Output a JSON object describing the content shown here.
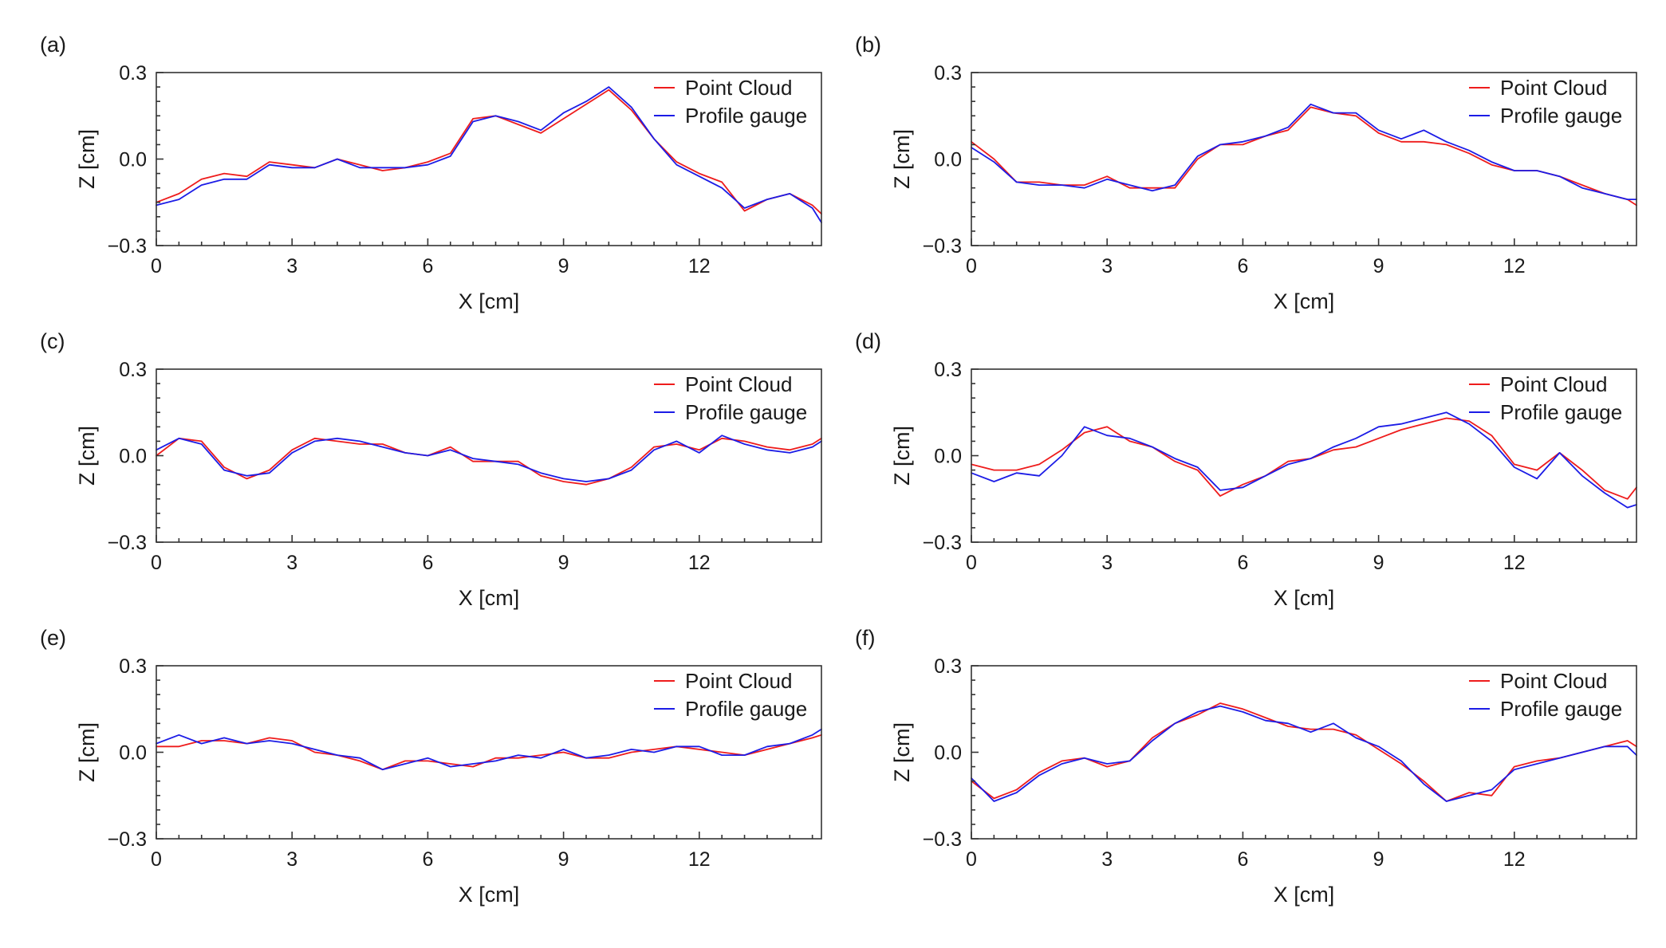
{
  "colors": {
    "point_cloud": "#ee1c1c",
    "profile_gauge": "#1c1ce6"
  },
  "chart_data": [
    {
      "type": "line",
      "panel": "(a)",
      "xlabel": "X [cm]",
      "ylabel": "Z [cm]",
      "xlim": [
        0,
        14.7
      ],
      "ylim": [
        -0.3,
        0.3
      ],
      "xticks": [
        0,
        3,
        6,
        9,
        12
      ],
      "yticks": [
        -0.3,
        0.0,
        0.3
      ],
      "xtick_labels": [
        "0",
        "3",
        "6",
        "9",
        "12"
      ],
      "ytick_labels": [
        "−0.3",
        "0.0",
        "0.3"
      ],
      "legend": [
        "Point Cloud",
        "Profile gauge"
      ],
      "series": [
        {
          "name": "Point Cloud",
          "x": [
            0,
            0.5,
            1,
            1.5,
            2,
            2.5,
            3,
            3.5,
            4,
            4.5,
            5,
            5.5,
            6,
            6.5,
            7,
            7.5,
            8,
            8.5,
            9,
            9.5,
            10,
            10.5,
            11,
            11.5,
            12,
            12.5,
            13,
            13.5,
            14,
            14.5,
            14.7
          ],
          "y": [
            -0.15,
            -0.12,
            -0.07,
            -0.05,
            -0.06,
            -0.01,
            -0.02,
            -0.03,
            0.0,
            -0.02,
            -0.04,
            -0.03,
            -0.01,
            0.02,
            0.14,
            0.15,
            0.12,
            0.09,
            0.14,
            0.19,
            0.24,
            0.17,
            0.07,
            -0.01,
            -0.05,
            -0.08,
            -0.18,
            -0.14,
            -0.12,
            -0.16,
            -0.19
          ]
        },
        {
          "name": "Profile gauge",
          "x": [
            0,
            0.5,
            1,
            1.5,
            2,
            2.5,
            3,
            3.5,
            4,
            4.5,
            5,
            5.5,
            6,
            6.5,
            7,
            7.5,
            8,
            8.5,
            9,
            9.5,
            10,
            10.5,
            11,
            11.5,
            12,
            12.5,
            13,
            13.5,
            14,
            14.5,
            14.7
          ],
          "y": [
            -0.16,
            -0.14,
            -0.09,
            -0.07,
            -0.07,
            -0.02,
            -0.03,
            -0.03,
            0.0,
            -0.03,
            -0.03,
            -0.03,
            -0.02,
            0.01,
            0.13,
            0.15,
            0.13,
            0.1,
            0.16,
            0.2,
            0.25,
            0.18,
            0.07,
            -0.02,
            -0.06,
            -0.1,
            -0.17,
            -0.14,
            -0.12,
            -0.17,
            -0.22
          ]
        }
      ]
    },
    {
      "type": "line",
      "panel": "(b)",
      "xlabel": "X [cm]",
      "ylabel": "Z [cm]",
      "xlim": [
        0,
        14.7
      ],
      "ylim": [
        -0.3,
        0.3
      ],
      "xticks": [
        0,
        3,
        6,
        9,
        12
      ],
      "yticks": [
        -0.3,
        0.0,
        0.3
      ],
      "xtick_labels": [
        "0",
        "3",
        "6",
        "9",
        "12"
      ],
      "ytick_labels": [
        "−0.3",
        "0.0",
        "0.3"
      ],
      "legend": [
        "Point Cloud",
        "Profile gauge"
      ],
      "series": [
        {
          "name": "Point Cloud",
          "x": [
            0,
            0.5,
            1,
            1.5,
            2,
            2.5,
            3,
            3.5,
            4,
            4.5,
            5,
            5.5,
            6,
            6.5,
            7,
            7.5,
            8,
            8.5,
            9,
            9.5,
            10,
            10.5,
            11,
            11.5,
            12,
            12.5,
            13,
            13.5,
            14,
            14.5,
            14.7
          ],
          "y": [
            0.06,
            0.0,
            -0.08,
            -0.08,
            -0.09,
            -0.09,
            -0.06,
            -0.1,
            -0.1,
            -0.1,
            0.0,
            0.05,
            0.05,
            0.08,
            0.1,
            0.18,
            0.16,
            0.15,
            0.09,
            0.06,
            0.06,
            0.05,
            0.02,
            -0.02,
            -0.04,
            -0.04,
            -0.06,
            -0.09,
            -0.12,
            -0.14,
            -0.16
          ]
        },
        {
          "name": "Profile gauge",
          "x": [
            0,
            0.5,
            1,
            1.5,
            2,
            2.5,
            3,
            3.5,
            4,
            4.5,
            5,
            5.5,
            6,
            6.5,
            7,
            7.5,
            8,
            8.5,
            9,
            9.5,
            10,
            10.5,
            11,
            11.5,
            12,
            12.5,
            13,
            13.5,
            14,
            14.5,
            14.7
          ],
          "y": [
            0.04,
            -0.01,
            -0.08,
            -0.09,
            -0.09,
            -0.1,
            -0.07,
            -0.09,
            -0.11,
            -0.09,
            0.01,
            0.05,
            0.06,
            0.08,
            0.11,
            0.19,
            0.16,
            0.16,
            0.1,
            0.07,
            0.1,
            0.06,
            0.03,
            -0.01,
            -0.04,
            -0.04,
            -0.06,
            -0.1,
            -0.12,
            -0.14,
            -0.14
          ]
        }
      ]
    },
    {
      "type": "line",
      "panel": "(c)",
      "xlabel": "X [cm]",
      "ylabel": "Z [cm]",
      "xlim": [
        0,
        14.7
      ],
      "ylim": [
        -0.3,
        0.3
      ],
      "xticks": [
        0,
        3,
        6,
        9,
        12
      ],
      "yticks": [
        -0.3,
        0.0,
        0.3
      ],
      "xtick_labels": [
        "0",
        "3",
        "6",
        "9",
        "12"
      ],
      "ytick_labels": [
        "−0.3",
        "0.0",
        "0.3"
      ],
      "legend": [
        "Point Cloud",
        "Profile gauge"
      ],
      "series": [
        {
          "name": "Point Cloud",
          "x": [
            0,
            0.5,
            1,
            1.5,
            2,
            2.5,
            3,
            3.5,
            4,
            4.5,
            5,
            5.5,
            6,
            6.5,
            7,
            7.5,
            8,
            8.5,
            9,
            9.5,
            10,
            10.5,
            11,
            11.5,
            12,
            12.5,
            13,
            13.5,
            14,
            14.5,
            14.7
          ],
          "y": [
            0.0,
            0.06,
            0.05,
            -0.04,
            -0.08,
            -0.05,
            0.02,
            0.06,
            0.05,
            0.04,
            0.04,
            0.01,
            0.0,
            0.03,
            -0.02,
            -0.02,
            -0.02,
            -0.07,
            -0.09,
            -0.1,
            -0.08,
            -0.04,
            0.03,
            0.04,
            0.02,
            0.06,
            0.05,
            0.03,
            0.02,
            0.04,
            0.06
          ]
        },
        {
          "name": "Profile gauge",
          "x": [
            0,
            0.5,
            1,
            1.5,
            2,
            2.5,
            3,
            3.5,
            4,
            4.5,
            5,
            5.5,
            6,
            6.5,
            7,
            7.5,
            8,
            8.5,
            9,
            9.5,
            10,
            10.5,
            11,
            11.5,
            12,
            12.5,
            13,
            13.5,
            14,
            14.5,
            14.7
          ],
          "y": [
            0.02,
            0.06,
            0.04,
            -0.05,
            -0.07,
            -0.06,
            0.01,
            0.05,
            0.06,
            0.05,
            0.03,
            0.01,
            0.0,
            0.02,
            -0.01,
            -0.02,
            -0.03,
            -0.06,
            -0.08,
            -0.09,
            -0.08,
            -0.05,
            0.02,
            0.05,
            0.01,
            0.07,
            0.04,
            0.02,
            0.01,
            0.03,
            0.05
          ]
        }
      ]
    },
    {
      "type": "line",
      "panel": "(d)",
      "xlabel": "X [cm]",
      "ylabel": "Z [cm]",
      "xlim": [
        0,
        14.7
      ],
      "ylim": [
        -0.3,
        0.3
      ],
      "xticks": [
        0,
        3,
        6,
        9,
        12
      ],
      "yticks": [
        -0.3,
        0.0,
        0.3
      ],
      "xtick_labels": [
        "0",
        "3",
        "6",
        "9",
        "12"
      ],
      "ytick_labels": [
        "−0.3",
        "0.0",
        "0.3"
      ],
      "legend": [
        "Point Cloud",
        "Profile gauge"
      ],
      "series": [
        {
          "name": "Point Cloud",
          "x": [
            0,
            0.5,
            1,
            1.5,
            2,
            2.5,
            3,
            3.5,
            4,
            4.5,
            5,
            5.5,
            6,
            6.5,
            7,
            7.5,
            8,
            8.5,
            9,
            9.5,
            10,
            10.5,
            11,
            11.5,
            12,
            12.5,
            13,
            13.5,
            14,
            14.5,
            14.7
          ],
          "y": [
            -0.03,
            -0.05,
            -0.05,
            -0.03,
            0.02,
            0.08,
            0.1,
            0.05,
            0.03,
            -0.02,
            -0.05,
            -0.14,
            -0.1,
            -0.07,
            -0.02,
            -0.01,
            0.02,
            0.03,
            0.06,
            0.09,
            0.11,
            0.13,
            0.12,
            0.07,
            -0.03,
            -0.05,
            0.01,
            -0.05,
            -0.12,
            -0.15,
            -0.11
          ]
        },
        {
          "name": "Profile gauge",
          "x": [
            0,
            0.5,
            1,
            1.5,
            2,
            2.5,
            3,
            3.5,
            4,
            4.5,
            5,
            5.5,
            6,
            6.5,
            7,
            7.5,
            8,
            8.5,
            9,
            9.5,
            10,
            10.5,
            11,
            11.5,
            12,
            12.5,
            13,
            13.5,
            14,
            14.5,
            14.7
          ],
          "y": [
            -0.06,
            -0.09,
            -0.06,
            -0.07,
            0.0,
            0.1,
            0.07,
            0.06,
            0.03,
            -0.01,
            -0.04,
            -0.12,
            -0.11,
            -0.07,
            -0.03,
            -0.01,
            0.03,
            0.06,
            0.1,
            0.11,
            0.13,
            0.15,
            0.11,
            0.05,
            -0.04,
            -0.08,
            0.01,
            -0.07,
            -0.13,
            -0.18,
            -0.17
          ]
        }
      ]
    },
    {
      "type": "line",
      "panel": "(e)",
      "xlabel": "X [cm]",
      "ylabel": "Z [cm]",
      "xlim": [
        0,
        14.7
      ],
      "ylim": [
        -0.3,
        0.3
      ],
      "xticks": [
        0,
        3,
        6,
        9,
        12
      ],
      "yticks": [
        -0.3,
        0.0,
        0.3
      ],
      "xtick_labels": [
        "0",
        "3",
        "6",
        "9",
        "12"
      ],
      "ytick_labels": [
        "−0.3",
        "0.0",
        "0.3"
      ],
      "legend": [
        "Point Cloud",
        "Profile gauge"
      ],
      "series": [
        {
          "name": "Point Cloud",
          "x": [
            0,
            0.5,
            1,
            1.5,
            2,
            2.5,
            3,
            3.5,
            4,
            4.5,
            5,
            5.5,
            6,
            6.5,
            7,
            7.5,
            8,
            8.5,
            9,
            9.5,
            10,
            10.5,
            11,
            11.5,
            12,
            12.5,
            13,
            13.5,
            14,
            14.5,
            14.7
          ],
          "y": [
            0.02,
            0.02,
            0.04,
            0.04,
            0.03,
            0.05,
            0.04,
            0.0,
            -0.01,
            -0.03,
            -0.06,
            -0.03,
            -0.03,
            -0.04,
            -0.05,
            -0.02,
            -0.02,
            -0.01,
            0.0,
            -0.02,
            -0.02,
            0.0,
            0.01,
            0.02,
            0.01,
            0.0,
            -0.01,
            0.01,
            0.03,
            0.05,
            0.06
          ]
        },
        {
          "name": "Profile gauge",
          "x": [
            0,
            0.5,
            1,
            1.5,
            2,
            2.5,
            3,
            3.5,
            4,
            4.5,
            5,
            5.5,
            6,
            6.5,
            7,
            7.5,
            8,
            8.5,
            9,
            9.5,
            10,
            10.5,
            11,
            11.5,
            12,
            12.5,
            13,
            13.5,
            14,
            14.5,
            14.7
          ],
          "y": [
            0.03,
            0.06,
            0.03,
            0.05,
            0.03,
            0.04,
            0.03,
            0.01,
            -0.01,
            -0.02,
            -0.06,
            -0.04,
            -0.02,
            -0.05,
            -0.04,
            -0.03,
            -0.01,
            -0.02,
            0.01,
            -0.02,
            -0.01,
            0.01,
            0.0,
            0.02,
            0.02,
            -0.01,
            -0.01,
            0.02,
            0.03,
            0.06,
            0.08
          ]
        }
      ]
    },
    {
      "type": "line",
      "panel": "(f)",
      "xlabel": "X [cm]",
      "ylabel": "Z [cm]",
      "xlim": [
        0,
        14.7
      ],
      "ylim": [
        -0.3,
        0.3
      ],
      "xticks": [
        0,
        3,
        6,
        9,
        12
      ],
      "yticks": [
        -0.3,
        0.0,
        0.3
      ],
      "xtick_labels": [
        "0",
        "3",
        "6",
        "9",
        "12"
      ],
      "ytick_labels": [
        "−0.3",
        "0.0",
        "0.3"
      ],
      "legend": [
        "Point Cloud",
        "Profile gauge"
      ],
      "series": [
        {
          "name": "Point Cloud",
          "x": [
            0,
            0.5,
            1,
            1.5,
            2,
            2.5,
            3,
            3.5,
            4,
            4.5,
            5,
            5.5,
            6,
            6.5,
            7,
            7.5,
            8,
            8.5,
            9,
            9.5,
            10,
            10.5,
            11,
            11.5,
            12,
            12.5,
            13,
            13.5,
            14,
            14.5,
            14.7
          ],
          "y": [
            -0.1,
            -0.16,
            -0.13,
            -0.07,
            -0.03,
            -0.02,
            -0.05,
            -0.03,
            0.05,
            0.1,
            0.13,
            0.17,
            0.15,
            0.12,
            0.09,
            0.08,
            0.08,
            0.06,
            0.01,
            -0.04,
            -0.1,
            -0.17,
            -0.14,
            -0.15,
            -0.05,
            -0.03,
            -0.02,
            0.0,
            0.02,
            0.04,
            0.02
          ]
        },
        {
          "name": "Profile gauge",
          "x": [
            0,
            0.5,
            1,
            1.5,
            2,
            2.5,
            3,
            3.5,
            4,
            4.5,
            5,
            5.5,
            6,
            6.5,
            7,
            7.5,
            8,
            8.5,
            9,
            9.5,
            10,
            10.5,
            11,
            11.5,
            12,
            12.5,
            13,
            13.5,
            14,
            14.5,
            14.7
          ],
          "y": [
            -0.09,
            -0.17,
            -0.14,
            -0.08,
            -0.04,
            -0.02,
            -0.04,
            -0.03,
            0.04,
            0.1,
            0.14,
            0.16,
            0.14,
            0.11,
            0.1,
            0.07,
            0.1,
            0.05,
            0.02,
            -0.03,
            -0.11,
            -0.17,
            -0.15,
            -0.13,
            -0.06,
            -0.04,
            -0.02,
            0.0,
            0.02,
            0.02,
            -0.01
          ]
        }
      ]
    }
  ]
}
